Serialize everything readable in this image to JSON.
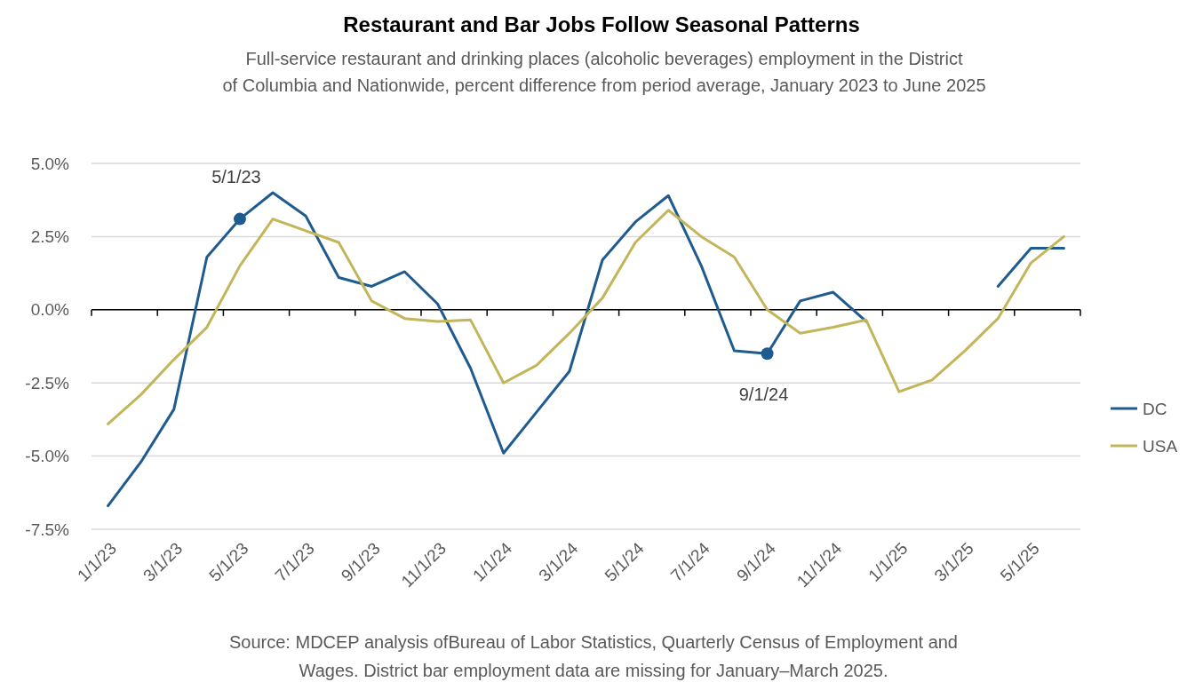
{
  "chart_data": {
    "type": "line",
    "title": "Restaurant and Bar Jobs Follow Seasonal Patterns",
    "subtitle": "Full-service restaurant and drinking places (alcoholic beverages) employment in the District of Columbia and Nationwide, percent difference from period average, January 2023 to June 2025",
    "categories": [
      "1/1/23",
      null,
      "3/1/23",
      null,
      "5/1/23",
      null,
      "7/1/23",
      null,
      "9/1/23",
      null,
      "11/1/23",
      null,
      "1/1/24",
      null,
      "3/1/24",
      null,
      "5/1/24",
      null,
      "7/1/24",
      null,
      "9/1/24",
      null,
      "11/1/24",
      null,
      "1/1/25",
      null,
      "3/1/25",
      null,
      "5/1/25",
      null
    ],
    "series": [
      {
        "name": "DC",
        "color": "#1f5b8e",
        "values": [
          -6.7,
          -5.2,
          -3.4,
          1.8,
          3.1,
          4.0,
          3.2,
          1.1,
          0.8,
          1.3,
          0.2,
          -2.0,
          -4.9,
          -3.5,
          -2.1,
          1.7,
          3.0,
          3.9,
          1.5,
          -1.4,
          -1.5,
          0.3,
          0.6,
          -0.4,
          null,
          null,
          null,
          0.8,
          2.1,
          2.1
        ]
      },
      {
        "name": "USA",
        "color": "#c2b55a",
        "values": [
          -3.9,
          -2.9,
          -1.7,
          -0.6,
          1.5,
          3.1,
          2.7,
          2.3,
          0.3,
          -0.3,
          -0.4,
          -0.35,
          -2.5,
          -1.9,
          -0.8,
          0.4,
          2.3,
          3.4,
          2.5,
          1.8,
          0.0,
          -0.8,
          -0.6,
          -0.35,
          -2.8,
          -2.4,
          -1.4,
          -0.3,
          1.6,
          2.5
        ]
      }
    ],
    "ylim": [
      -7.5,
      5
    ],
    "yticks": [
      {
        "value": -7.5,
        "label": "-7.5%"
      },
      {
        "value": -5,
        "label": "-5.0%"
      },
      {
        "value": -2.5,
        "label": "-2.5%"
      },
      {
        "value": 0,
        "label": "0.0%"
      },
      {
        "value": 2.5,
        "label": "2.5%"
      },
      {
        "value": 5,
        "label": "5.0%"
      }
    ],
    "grid": "y",
    "legend": "right",
    "annotations": [
      {
        "text": "5/1/23",
        "x": "5/1/23",
        "y": 3.1
      },
      {
        "text": "9/1/24",
        "x": "9/1/24",
        "y": -1.5
      },
      "Source: MDCEP analysis ofBureau of Labor Statistics, Quarterly Census of Employment and Wages. District bar employment data are missing for January–March 2025."
    ]
  }
}
